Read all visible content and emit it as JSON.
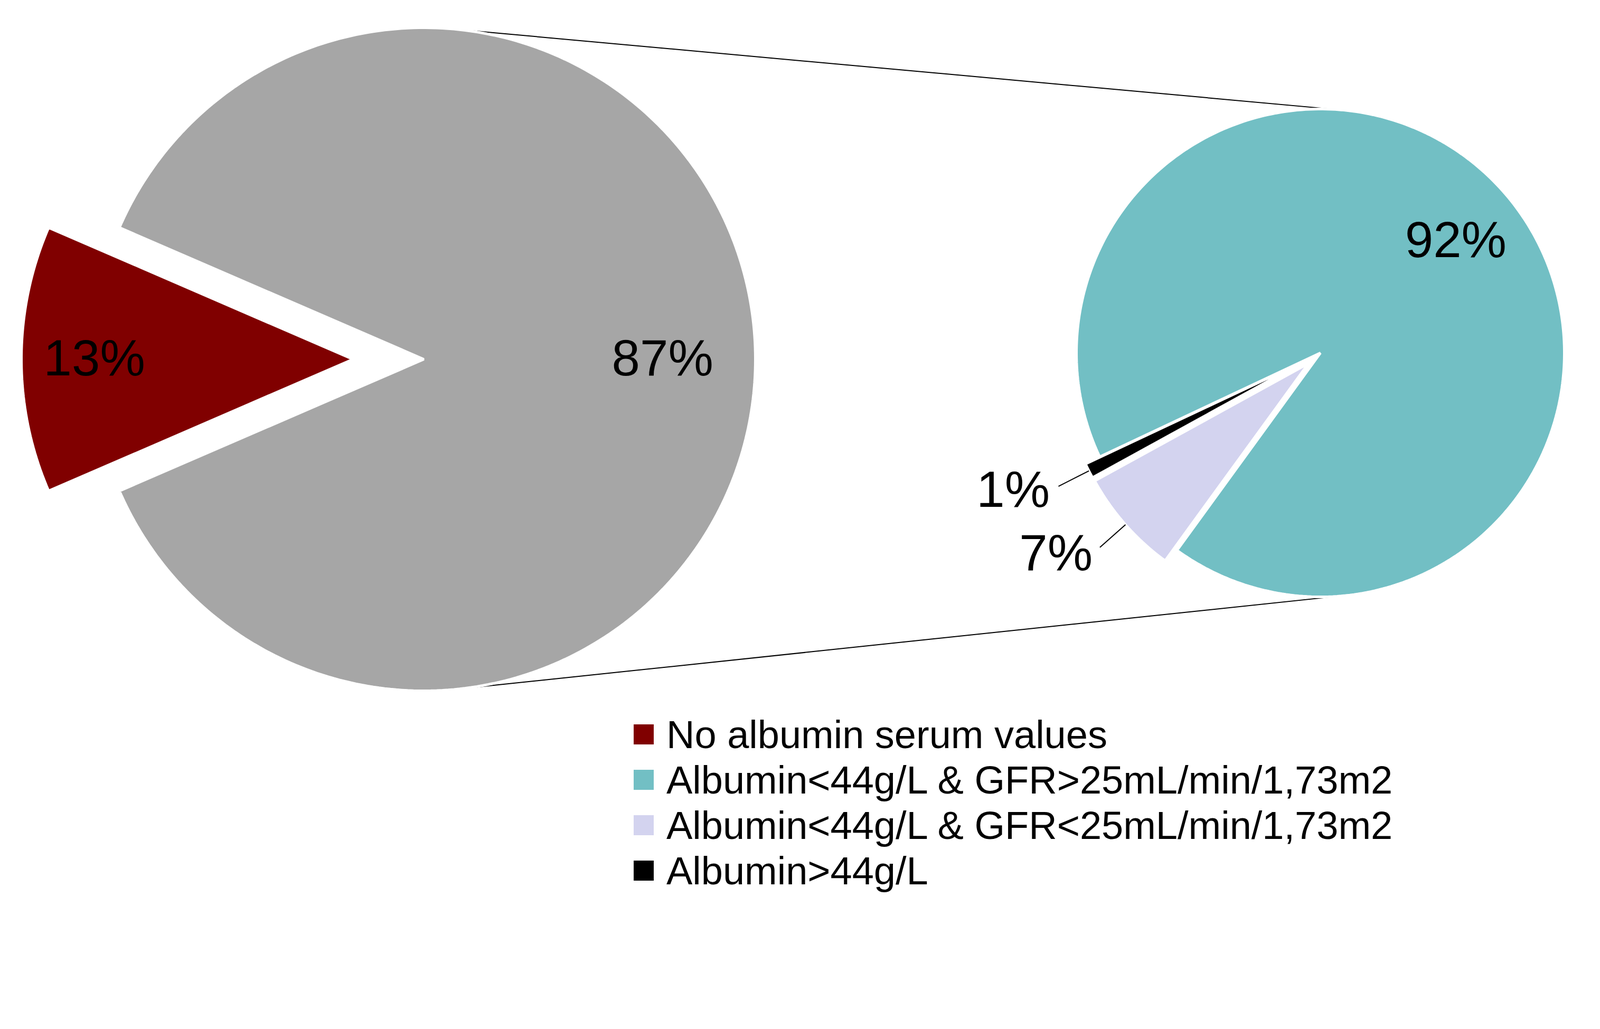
{
  "chart_data": [
    {
      "type": "pie",
      "categories": [
        "No albumin serum values",
        null
      ],
      "values": [
        13,
        87
      ],
      "value_labels": [
        "13%",
        "87%"
      ],
      "colors": [
        "#800000",
        "#a6a6a6"
      ],
      "data_labels": true,
      "legend": "bottom"
    },
    {
      "type": "pie",
      "categories": [
        "Albumin<44g/L & GFR>25mL/min/1,73m2",
        "Albumin<44g/L & GFR<25mL/min/1,73m2",
        "Albumin>44g/L"
      ],
      "values": [
        92,
        7,
        1
      ],
      "value_labels": [
        "92%",
        "7%",
        "1%"
      ],
      "colors": [
        "#72bfc4",
        "#d3d3ef",
        "#000000"
      ],
      "data_labels": true,
      "legend": "bottom"
    }
  ]
}
